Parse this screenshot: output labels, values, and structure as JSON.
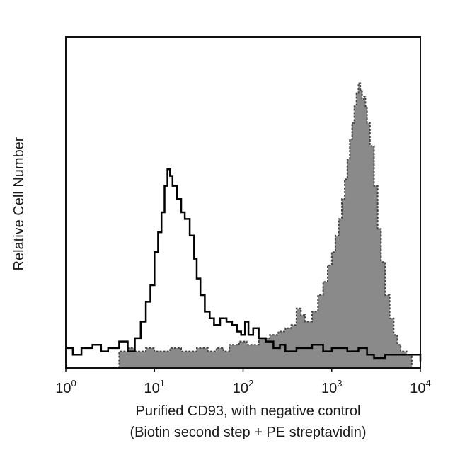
{
  "chart_data": {
    "type": "area",
    "title": "",
    "xlabel": "Purified CD93, with negative control",
    "xlabel_line2": "(Biotin second step + PE streptavidin)",
    "ylabel": "Relative Cell Number",
    "x_scale": "log",
    "xlim": [
      1,
      10000
    ],
    "ylim": [
      0,
      100
    ],
    "grid": false,
    "legend": "none",
    "x_ticks": [
      {
        "base": "10",
        "exp": "0",
        "value": 1
      },
      {
        "base": "10",
        "exp": "1",
        "value": 10
      },
      {
        "base": "10",
        "exp": "2",
        "value": 100
      },
      {
        "base": "10",
        "exp": "3",
        "value": 1000
      },
      {
        "base": "10",
        "exp": "4",
        "value": 10000
      }
    ],
    "series": [
      {
        "style": "open-outline",
        "color": "#000000",
        "points": [
          [
            1.0,
            6
          ],
          [
            1.2,
            4
          ],
          [
            1.5,
            6
          ],
          [
            2.0,
            7
          ],
          [
            2.5,
            5
          ],
          [
            3.0,
            6
          ],
          [
            4.0,
            8
          ],
          [
            5.0,
            5
          ],
          [
            6.0,
            9
          ],
          [
            7.0,
            14
          ],
          [
            8.0,
            20
          ],
          [
            9.0,
            25
          ],
          [
            10.0,
            35
          ],
          [
            11.0,
            41
          ],
          [
            12.0,
            47
          ],
          [
            13.0,
            55
          ],
          [
            14.0,
            60
          ],
          [
            15.0,
            58
          ],
          [
            16.0,
            55
          ],
          [
            18.0,
            51
          ],
          [
            20.0,
            47
          ],
          [
            22.0,
            45
          ],
          [
            25.0,
            40
          ],
          [
            28.0,
            33
          ],
          [
            30.0,
            27
          ],
          [
            33.0,
            22
          ],
          [
            37.0,
            17
          ],
          [
            42.0,
            15
          ],
          [
            47.0,
            13
          ],
          [
            55.0,
            15
          ],
          [
            65.0,
            14
          ],
          [
            75.0,
            13
          ],
          [
            85.0,
            11
          ],
          [
            95.0,
            10
          ],
          [
            105.0,
            14
          ],
          [
            115.0,
            10
          ],
          [
            130.0,
            12
          ],
          [
            150.0,
            9
          ],
          [
            180.0,
            8
          ],
          [
            220.0,
            6
          ],
          [
            260.0,
            7
          ],
          [
            300.0,
            5
          ],
          [
            400.0,
            6
          ],
          [
            600.0,
            7
          ],
          [
            800.0,
            5
          ],
          [
            1000.0,
            6
          ],
          [
            1500.0,
            5
          ],
          [
            2000.0,
            6
          ],
          [
            2500.0,
            4
          ],
          [
            3000.0,
            3
          ],
          [
            4000.0,
            4
          ],
          [
            10000.0,
            2
          ]
        ]
      },
      {
        "style": "filled-dotted",
        "color": "#8a8a8a",
        "points": [
          [
            3.0,
            0
          ],
          [
            4.0,
            5
          ],
          [
            5.0,
            6
          ],
          [
            6.0,
            5
          ],
          [
            8.0,
            6
          ],
          [
            10.0,
            5
          ],
          [
            15.0,
            6
          ],
          [
            20.0,
            5
          ],
          [
            30.0,
            6
          ],
          [
            40.0,
            5
          ],
          [
            50.0,
            6
          ],
          [
            60.0,
            5
          ],
          [
            70.0,
            7
          ],
          [
            90.0,
            8
          ],
          [
            110.0,
            7
          ],
          [
            150.0,
            9
          ],
          [
            200.0,
            10
          ],
          [
            250.0,
            11
          ],
          [
            300.0,
            12
          ],
          [
            350.0,
            13
          ],
          [
            400.0,
            18
          ],
          [
            450.0,
            16
          ],
          [
            500.0,
            14
          ],
          [
            600.0,
            17
          ],
          [
            700.0,
            22
          ],
          [
            800.0,
            26
          ],
          [
            900.0,
            31
          ],
          [
            1000.0,
            35
          ],
          [
            1100.0,
            40
          ],
          [
            1200.0,
            45
          ],
          [
            1300.0,
            51
          ],
          [
            1400.0,
            57
          ],
          [
            1500.0,
            63
          ],
          [
            1600.0,
            69
          ],
          [
            1700.0,
            74
          ],
          [
            1800.0,
            79
          ],
          [
            1900.0,
            83
          ],
          [
            2000.0,
            86
          ],
          [
            2100.0,
            84
          ],
          [
            2200.0,
            81
          ],
          [
            2300.0,
            82
          ],
          [
            2400.0,
            79
          ],
          [
            2500.0,
            74
          ],
          [
            2700.0,
            67
          ],
          [
            3000.0,
            55
          ],
          [
            3300.0,
            42
          ],
          [
            3600.0,
            32
          ],
          [
            4000.0,
            22
          ],
          [
            4500.0,
            15
          ],
          [
            5000.0,
            10
          ],
          [
            5500.0,
            7
          ],
          [
            6000.0,
            5
          ],
          [
            7000.0,
            4
          ],
          [
            8000.0,
            0
          ]
        ]
      }
    ]
  }
}
